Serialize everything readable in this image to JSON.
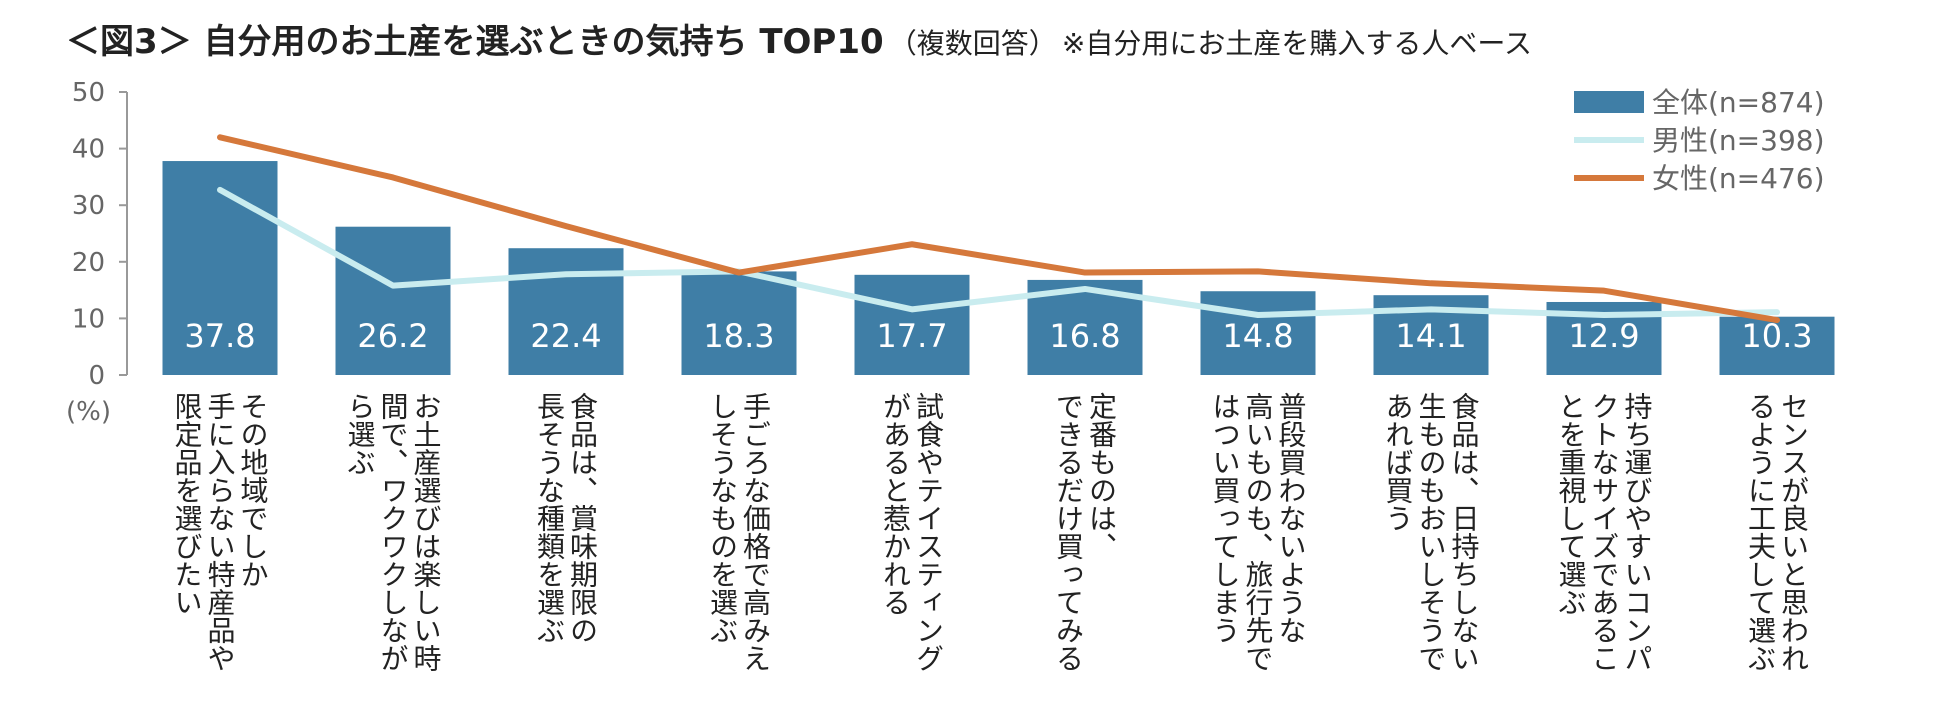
{
  "title": {
    "main": "＜図3＞ 自分用のお土産を選ぶときの気持ち TOP10",
    "sub": "（複数回答）",
    "note": "※自分用にお土産を購入する人ベース"
  },
  "colors": {
    "bar": "#3f7ea6",
    "male": "#c9ecef",
    "female": "#d5783b",
    "axis": "#999999"
  },
  "chart_data": {
    "type": "bar",
    "title": "＜図3＞ 自分用のお土産を選ぶときの気持ち TOP10",
    "ylabel": "(%)",
    "ylim": [
      0,
      50
    ],
    "yticks": [
      "0",
      "10",
      "20",
      "30",
      "40",
      "50"
    ],
    "categories": [
      [
        "その地域でしか",
        "手に入らない特産品や",
        "限定品を選びたい"
      ],
      [
        "お土産選びは楽しい時",
        "間で、ワクワクしなが",
        "ら選ぶ"
      ],
      [
        "食品は、賞味期限の",
        "長そうな種類を選ぶ"
      ],
      [
        "手ごろな価格で高みえ",
        "しそうなものを選ぶ"
      ],
      [
        "試食やテイスティング",
        "があると惹かれる"
      ],
      [
        "定番ものは、",
        "できるだけ買ってみる"
      ],
      [
        "普段買わないような",
        "高いものも、旅行先で",
        "はつい買ってしまう"
      ],
      [
        "食品は、日持ちしない",
        "生ものもおいしそうで",
        "あれば買う"
      ],
      [
        "持ち運びやすいコンパ",
        "クトなサイズであるこ",
        "とを重視して選ぶ"
      ],
      [
        "センスが良いと思われ",
        "るように工夫して選ぶ"
      ]
    ],
    "series": [
      {
        "name": "全体(n=874)",
        "type": "bar",
        "values": [
          37.8,
          26.2,
          22.4,
          18.3,
          17.7,
          16.8,
          14.8,
          14.1,
          12.9,
          10.3
        ],
        "labels": [
          "37.8",
          "26.2",
          "22.4",
          "18.3",
          "17.7",
          "16.8",
          "14.8",
          "14.1",
          "12.9",
          "10.3"
        ]
      },
      {
        "name": "男性(n=398)",
        "type": "line",
        "values": [
          32.7,
          15.8,
          17.8,
          18.3,
          11.6,
          15.2,
          10.6,
          11.6,
          10.6,
          11.1
        ]
      },
      {
        "name": "女性(n=476)",
        "type": "line",
        "values": [
          42.0,
          34.9,
          26.3,
          18.1,
          23.1,
          18.1,
          18.3,
          16.2,
          14.9,
          9.7
        ]
      }
    ],
    "legend": "top-right"
  }
}
